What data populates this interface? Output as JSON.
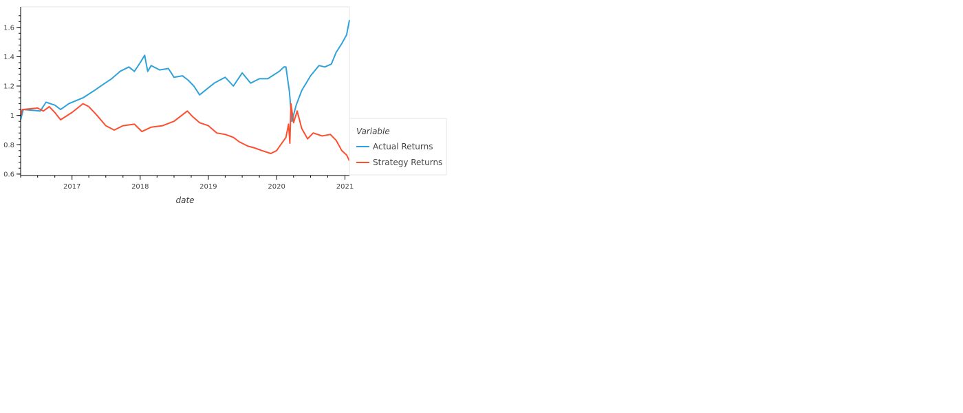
{
  "chart_data": {
    "type": "line",
    "title": "",
    "xlabel": "date",
    "ylabel": "",
    "x_ticks": [
      "2017",
      "2018",
      "2019",
      "2020",
      "2021"
    ],
    "y_ticks": [
      "0.6",
      "0.8",
      "1",
      "1.2",
      "1.4",
      "1.6"
    ],
    "xlim": [
      "2016-04-01",
      "2021-01-25"
    ],
    "ylim": [
      0.59,
      1.74
    ],
    "grid": false,
    "legend_placement": "right",
    "legend_title": "Variable",
    "series": [
      {
        "name": "Actual Returns",
        "color": "#30a2da",
        "points": [
          [
            "2016-04-01",
            0.97
          ],
          [
            "2016-04-15",
            1.04
          ],
          [
            "2016-07-15",
            1.03
          ],
          [
            "2016-08-15",
            1.09
          ],
          [
            "2016-10-01",
            1.07
          ],
          [
            "2016-11-01",
            1.04
          ],
          [
            "2016-12-15",
            1.08
          ],
          [
            "2017-03-01",
            1.12
          ],
          [
            "2017-05-01",
            1.17
          ],
          [
            "2017-06-15",
            1.21
          ],
          [
            "2017-08-01",
            1.25
          ],
          [
            "2017-09-15",
            1.3
          ],
          [
            "2017-11-01",
            1.33
          ],
          [
            "2017-12-01",
            1.3
          ],
          [
            "2018-01-01",
            1.36
          ],
          [
            "2018-01-25",
            1.41
          ],
          [
            "2018-02-10",
            1.3
          ],
          [
            "2018-03-01",
            1.34
          ],
          [
            "2018-04-15",
            1.31
          ],
          [
            "2018-06-01",
            1.32
          ],
          [
            "2018-07-01",
            1.26
          ],
          [
            "2018-08-15",
            1.27
          ],
          [
            "2018-09-15",
            1.24
          ],
          [
            "2018-10-15",
            1.2
          ],
          [
            "2018-11-15",
            1.14
          ],
          [
            "2018-12-24",
            1.18
          ],
          [
            "2019-02-01",
            1.22
          ],
          [
            "2019-04-01",
            1.26
          ],
          [
            "2019-05-15",
            1.2
          ],
          [
            "2019-07-01",
            1.29
          ],
          [
            "2019-08-15",
            1.22
          ],
          [
            "2019-10-01",
            1.25
          ],
          [
            "2019-11-15",
            1.25
          ],
          [
            "2020-01-15",
            1.3
          ],
          [
            "2020-02-10",
            1.33
          ],
          [
            "2020-02-20",
            1.33
          ],
          [
            "2020-03-10",
            1.16
          ],
          [
            "2020-03-23",
            0.96
          ],
          [
            "2020-04-15",
            1.07
          ],
          [
            "2020-05-15",
            1.17
          ],
          [
            "2020-07-01",
            1.27
          ],
          [
            "2020-08-15",
            1.34
          ],
          [
            "2020-09-15",
            1.33
          ],
          [
            "2020-10-20",
            1.35
          ],
          [
            "2020-11-15",
            1.43
          ],
          [
            "2020-12-15",
            1.49
          ],
          [
            "2021-01-10",
            1.55
          ],
          [
            "2021-01-25",
            1.65
          ]
        ]
      },
      {
        "name": "Strategy Returns",
        "color": "#fc4f30",
        "points": [
          [
            "2016-04-01",
            1.0
          ],
          [
            "2016-04-10",
            1.04
          ],
          [
            "2016-07-01",
            1.05
          ],
          [
            "2016-08-01",
            1.03
          ],
          [
            "2016-09-01",
            1.06
          ],
          [
            "2016-10-01",
            1.02
          ],
          [
            "2016-11-01",
            0.97
          ],
          [
            "2017-01-01",
            1.02
          ],
          [
            "2017-03-01",
            1.08
          ],
          [
            "2017-04-01",
            1.06
          ],
          [
            "2017-05-15",
            1.0
          ],
          [
            "2017-07-01",
            0.93
          ],
          [
            "2017-08-15",
            0.9
          ],
          [
            "2017-10-01",
            0.93
          ],
          [
            "2017-12-01",
            0.94
          ],
          [
            "2018-01-10",
            0.89
          ],
          [
            "2018-03-01",
            0.92
          ],
          [
            "2018-05-01",
            0.93
          ],
          [
            "2018-07-01",
            0.96
          ],
          [
            "2018-09-10",
            1.03
          ],
          [
            "2018-10-10",
            0.99
          ],
          [
            "2018-11-15",
            0.95
          ],
          [
            "2019-01-01",
            0.93
          ],
          [
            "2019-02-15",
            0.88
          ],
          [
            "2019-04-01",
            0.87
          ],
          [
            "2019-05-15",
            0.85
          ],
          [
            "2019-06-15",
            0.82
          ],
          [
            "2019-08-01",
            0.79
          ],
          [
            "2019-09-01",
            0.78
          ],
          [
            "2019-10-15",
            0.76
          ],
          [
            "2019-12-01",
            0.74
          ],
          [
            "2020-01-01",
            0.76
          ],
          [
            "2020-02-20",
            0.85
          ],
          [
            "2020-03-05",
            0.94
          ],
          [
            "2020-03-12",
            0.81
          ],
          [
            "2020-03-18",
            1.08
          ],
          [
            "2020-04-01",
            0.95
          ],
          [
            "2020-04-20",
            1.03
          ],
          [
            "2020-05-15",
            0.91
          ],
          [
            "2020-06-15",
            0.84
          ],
          [
            "2020-07-15",
            0.88
          ],
          [
            "2020-09-01",
            0.86
          ],
          [
            "2020-10-15",
            0.87
          ],
          [
            "2020-11-15",
            0.83
          ],
          [
            "2020-12-15",
            0.76
          ],
          [
            "2021-01-10",
            0.73
          ],
          [
            "2021-01-25",
            0.69
          ]
        ]
      }
    ]
  }
}
